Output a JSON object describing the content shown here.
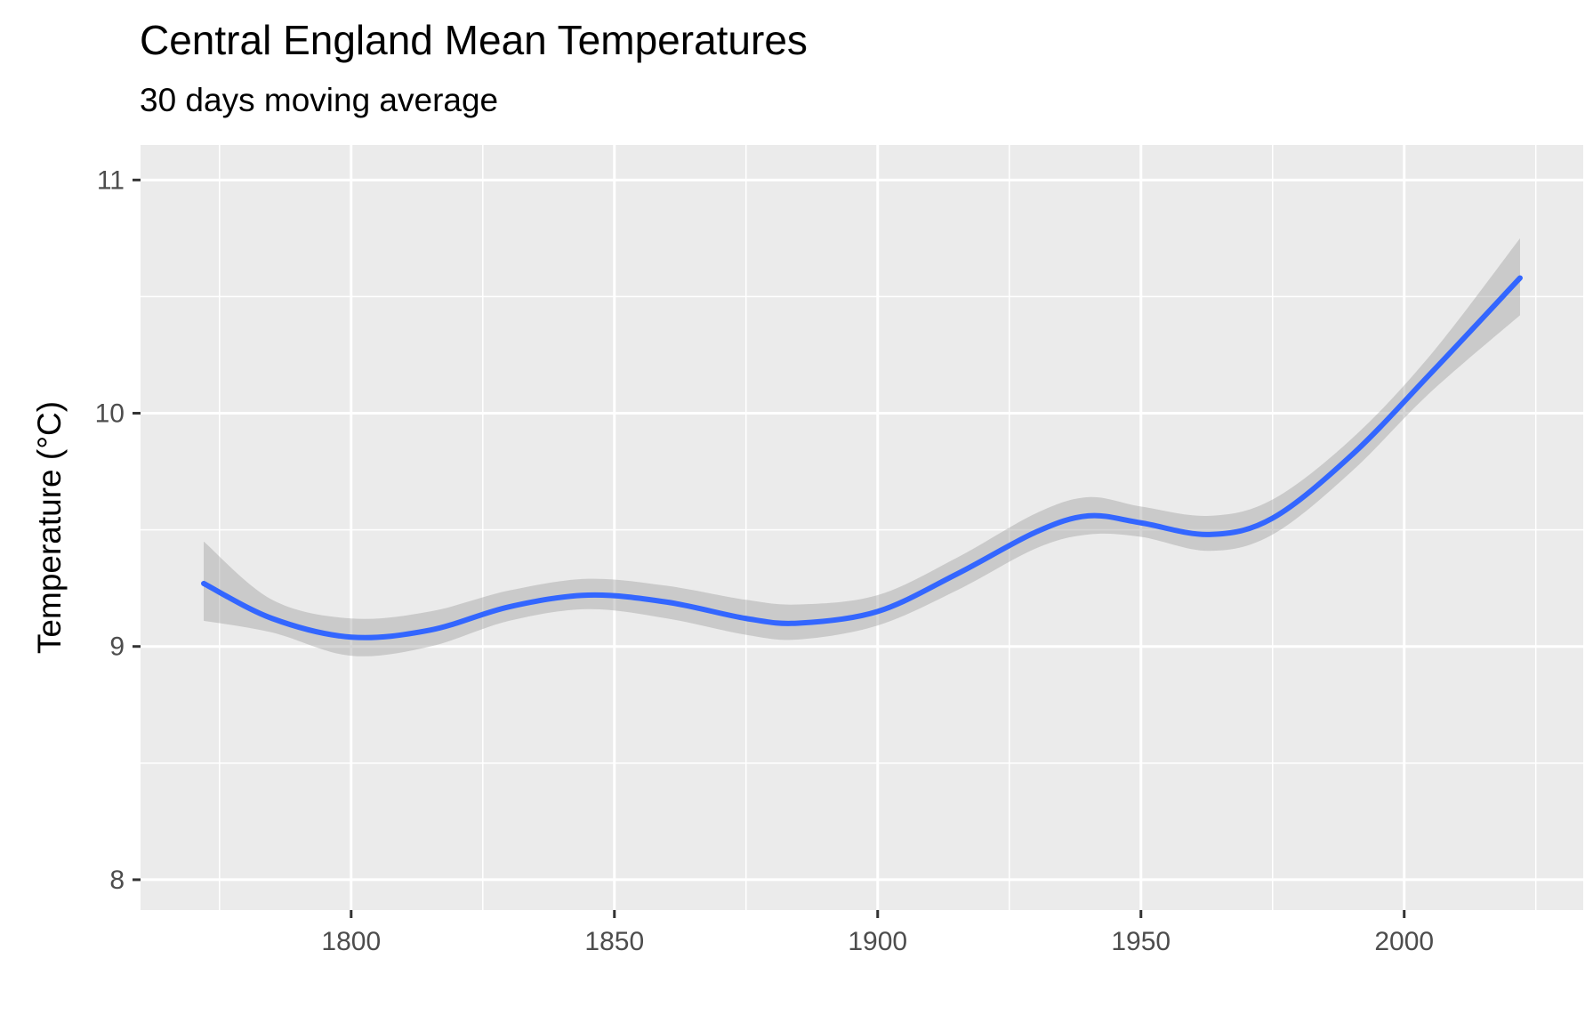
{
  "chart_data": {
    "type": "line",
    "title": "Central England Mean Temperatures",
    "subtitle": "30 days moving average",
    "xlabel": "",
    "ylabel": "Temperature (°C)",
    "xlim": [
      1760,
      2034
    ],
    "ylim": [
      7.87,
      11.15
    ],
    "x_ticks": [
      1800,
      1850,
      1900,
      1950,
      2000
    ],
    "y_ticks": [
      8,
      9,
      10,
      11
    ],
    "x_tick_labels": [
      "1800",
      "1850",
      "1900",
      "1950",
      "2000"
    ],
    "y_tick_labels": [
      "8",
      "9",
      "10",
      "11"
    ],
    "grid": true,
    "legend": "none",
    "colors": {
      "line": "#3366FF",
      "band": "#999999",
      "panel": "#EBEBEB",
      "grid": "#FFFFFF"
    },
    "series": [
      {
        "x": [
          1772,
          1785,
          1800,
          1815,
          1830,
          1845,
          1860,
          1875,
          1885,
          1900,
          1915,
          1930,
          1940,
          1950,
          1963,
          1975,
          1990,
          2005,
          2022
        ],
        "y": [
          9.27,
          9.12,
          9.04,
          9.07,
          9.17,
          9.22,
          9.19,
          9.12,
          9.1,
          9.15,
          9.31,
          9.49,
          9.56,
          9.53,
          9.48,
          9.55,
          9.82,
          10.17,
          10.58
        ],
        "lower": [
          9.11,
          9.06,
          8.96,
          9.0,
          9.11,
          9.16,
          9.12,
          9.05,
          9.03,
          9.09,
          9.24,
          9.42,
          9.48,
          9.47,
          9.41,
          9.48,
          9.75,
          10.09,
          10.42
        ],
        "upper": [
          9.45,
          9.2,
          9.12,
          9.15,
          9.24,
          9.29,
          9.26,
          9.2,
          9.18,
          9.22,
          9.38,
          9.57,
          9.64,
          9.6,
          9.56,
          9.63,
          9.89,
          10.25,
          10.75
        ]
      }
    ]
  }
}
